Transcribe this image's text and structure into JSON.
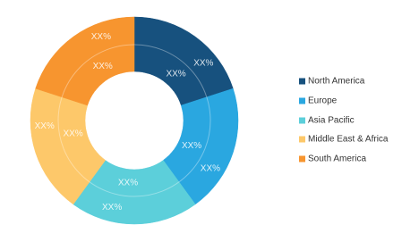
{
  "chart_data": {
    "type": "donut",
    "categories": [
      "North America",
      "Europe",
      "Asia Pacific",
      "Middle East & Africa",
      "South America"
    ],
    "colors": [
      "#17517e",
      "#2aa7e0",
      "#5ccfda",
      "#fdc86a",
      "#f7952f"
    ],
    "series": [
      {
        "values": [
          20,
          20,
          20,
          20,
          20
        ],
        "value_labels": [
          "XX%",
          "XX%",
          "XX%",
          "XX%",
          "XX%"
        ]
      },
      {
        "values": [
          20,
          20,
          20,
          20,
          20
        ],
        "value_labels": [
          "XX%",
          "XX%",
          "XX%",
          "XX%",
          "XX%"
        ]
      }
    ],
    "legend": "right"
  }
}
